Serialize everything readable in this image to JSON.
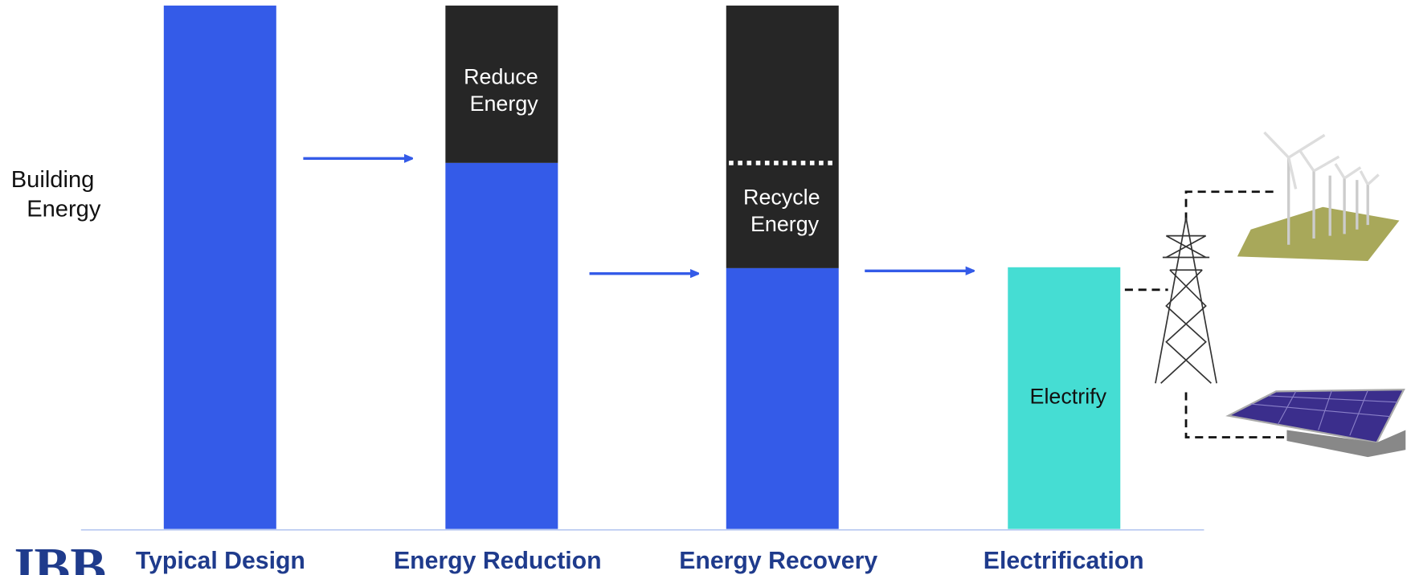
{
  "y_label": "Building Energy",
  "logo": "JBB",
  "stages": [
    {
      "label": "Typical Design"
    },
    {
      "label": "Energy Reduction",
      "segment": "Reduce Energy"
    },
    {
      "label": "Energy Recovery",
      "segment": "Recycle Energy"
    },
    {
      "label": "Electrification",
      "segment": "Electrify"
    }
  ]
}
